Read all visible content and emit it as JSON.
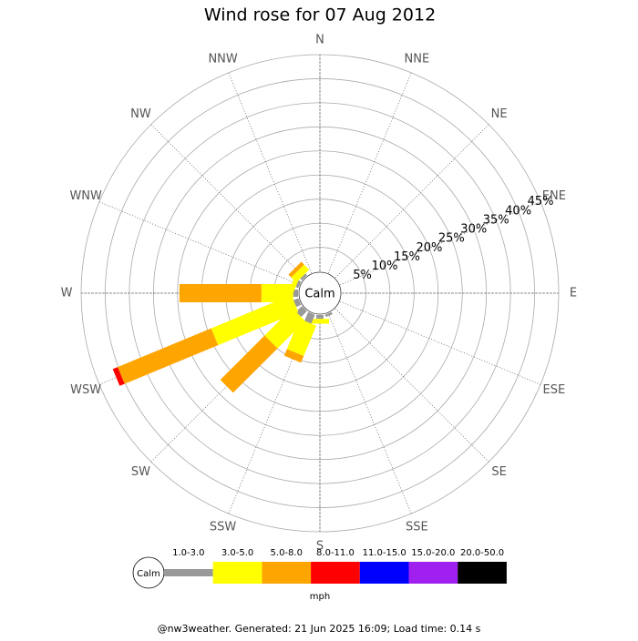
{
  "chart_data": {
    "type": "windrose",
    "title": "Wind rose for 07 Aug 2012",
    "categories": [
      "N",
      "NNE",
      "NE",
      "ENE",
      "E",
      "ESE",
      "SE",
      "SSE",
      "S",
      "SSW",
      "SW",
      "WSW",
      "W",
      "WNW",
      "NW",
      "NNW"
    ],
    "center_label": "Calm",
    "rlim": [
      0,
      45
    ],
    "rticks": [
      {
        "value": 5,
        "label": "5%"
      },
      {
        "value": 10,
        "label": "10%"
      },
      {
        "value": 15,
        "label": "15%"
      },
      {
        "value": 20,
        "label": "20%"
      },
      {
        "value": 25,
        "label": "25%"
      },
      {
        "value": 30,
        "label": "30%"
      },
      {
        "value": 35,
        "label": "35%"
      },
      {
        "value": 40,
        "label": "40%"
      },
      {
        "value": 45,
        "label": "45%"
      }
    ],
    "series": [
      {
        "name": "1.0-3.0",
        "color": "#999999",
        "values": [
          0,
          0,
          0,
          0,
          0,
          0,
          0,
          0.5,
          0.8,
          2,
          1.7,
          1.1,
          1,
          0.6,
          0.5,
          0
        ]
      },
      {
        "name": "3.0-5.0",
        "color": "#ffff00",
        "values": [
          0,
          0,
          0,
          0,
          0,
          0,
          0,
          0,
          1,
          6.8,
          8.1,
          18,
          6.6,
          1,
          1.5,
          0
        ]
      },
      {
        "name": "5.0-8.0",
        "color": "#ffa500",
        "values": [
          0,
          0,
          0,
          0,
          0,
          0,
          0,
          0,
          0,
          1.5,
          13,
          21,
          17,
          0,
          0.8,
          0
        ]
      },
      {
        "name": "8.0-11.0",
        "color": "#ff0000",
        "values": [
          0,
          0,
          0,
          0,
          0,
          0,
          0,
          0,
          0,
          0,
          0,
          1.1,
          0,
          0,
          0,
          0
        ]
      },
      {
        "name": "11.0-15.0",
        "color": "#0000ff",
        "values": [
          0,
          0,
          0,
          0,
          0,
          0,
          0,
          0,
          0,
          0,
          0,
          0,
          0,
          0,
          0,
          0
        ]
      },
      {
        "name": "15.0-20.0",
        "color": "#a020f0",
        "values": [
          0,
          0,
          0,
          0,
          0,
          0,
          0,
          0,
          0,
          0,
          0,
          0,
          0,
          0,
          0,
          0
        ]
      },
      {
        "name": "20.0-50.0",
        "color": "#000000",
        "values": [
          0,
          0,
          0,
          0,
          0,
          0,
          0,
          0,
          0,
          0,
          0,
          0,
          0,
          0,
          0,
          0
        ]
      }
    ],
    "legend_unit": "mph",
    "footer": "@nw3weather. Generated: 21 Jun 2025 16:09; Load time: 0.14 s"
  }
}
